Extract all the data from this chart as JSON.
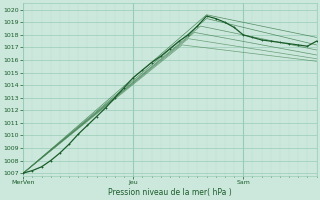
{
  "title": "Pression niveau de la mer( hPa )",
  "ylabel_ticks": [
    1007,
    1008,
    1009,
    1010,
    1011,
    1012,
    1013,
    1014,
    1015,
    1016,
    1017,
    1018,
    1019,
    1020
  ],
  "ylim": [
    1006.8,
    1020.5
  ],
  "xlim": [
    0,
    96
  ],
  "xtick_positions": [
    0,
    36,
    72
  ],
  "xtick_labels": [
    "MerVen",
    "Jeu",
    "Sam"
  ],
  "bg_color": "#cce8dc",
  "grid_color_major": "#99ccb8",
  "grid_color_minor": "#b8ddd0",
  "line_color_dark": "#1a5c2a",
  "forecast_lines": [
    {
      "t": [
        0,
        60,
        96
      ],
      "v": [
        1007.0,
        1019.6,
        1017.8
      ]
    },
    {
      "t": [
        0,
        60,
        96
      ],
      "v": [
        1007.0,
        1019.3,
        1017.2
      ]
    },
    {
      "t": [
        0,
        58,
        96
      ],
      "v": [
        1007.0,
        1018.7,
        1016.8
      ]
    },
    {
      "t": [
        0,
        56,
        96
      ],
      "v": [
        1007.0,
        1018.2,
        1016.4
      ]
    },
    {
      "t": [
        0,
        54,
        96
      ],
      "v": [
        1007.0,
        1017.7,
        1016.1
      ]
    },
    {
      "t": [
        0,
        52,
        96
      ],
      "v": [
        1007.0,
        1017.2,
        1015.9
      ]
    }
  ],
  "main_line_t": [
    0,
    3,
    6,
    9,
    12,
    15,
    18,
    21,
    24,
    27,
    30,
    33,
    36,
    39,
    42,
    45,
    48,
    51,
    54,
    57,
    60,
    63,
    66,
    69,
    72,
    75,
    78,
    81,
    84,
    87,
    90,
    93,
    96
  ],
  "main_line_v": [
    1007.0,
    1007.2,
    1007.5,
    1008.0,
    1008.6,
    1009.3,
    1010.1,
    1010.8,
    1011.5,
    1012.2,
    1013.0,
    1013.8,
    1014.6,
    1015.2,
    1015.8,
    1016.3,
    1016.9,
    1017.5,
    1018.0,
    1018.7,
    1019.5,
    1019.3,
    1019.0,
    1018.6,
    1018.0,
    1017.8,
    1017.6,
    1017.5,
    1017.4,
    1017.3,
    1017.2,
    1017.1,
    1017.5
  ]
}
